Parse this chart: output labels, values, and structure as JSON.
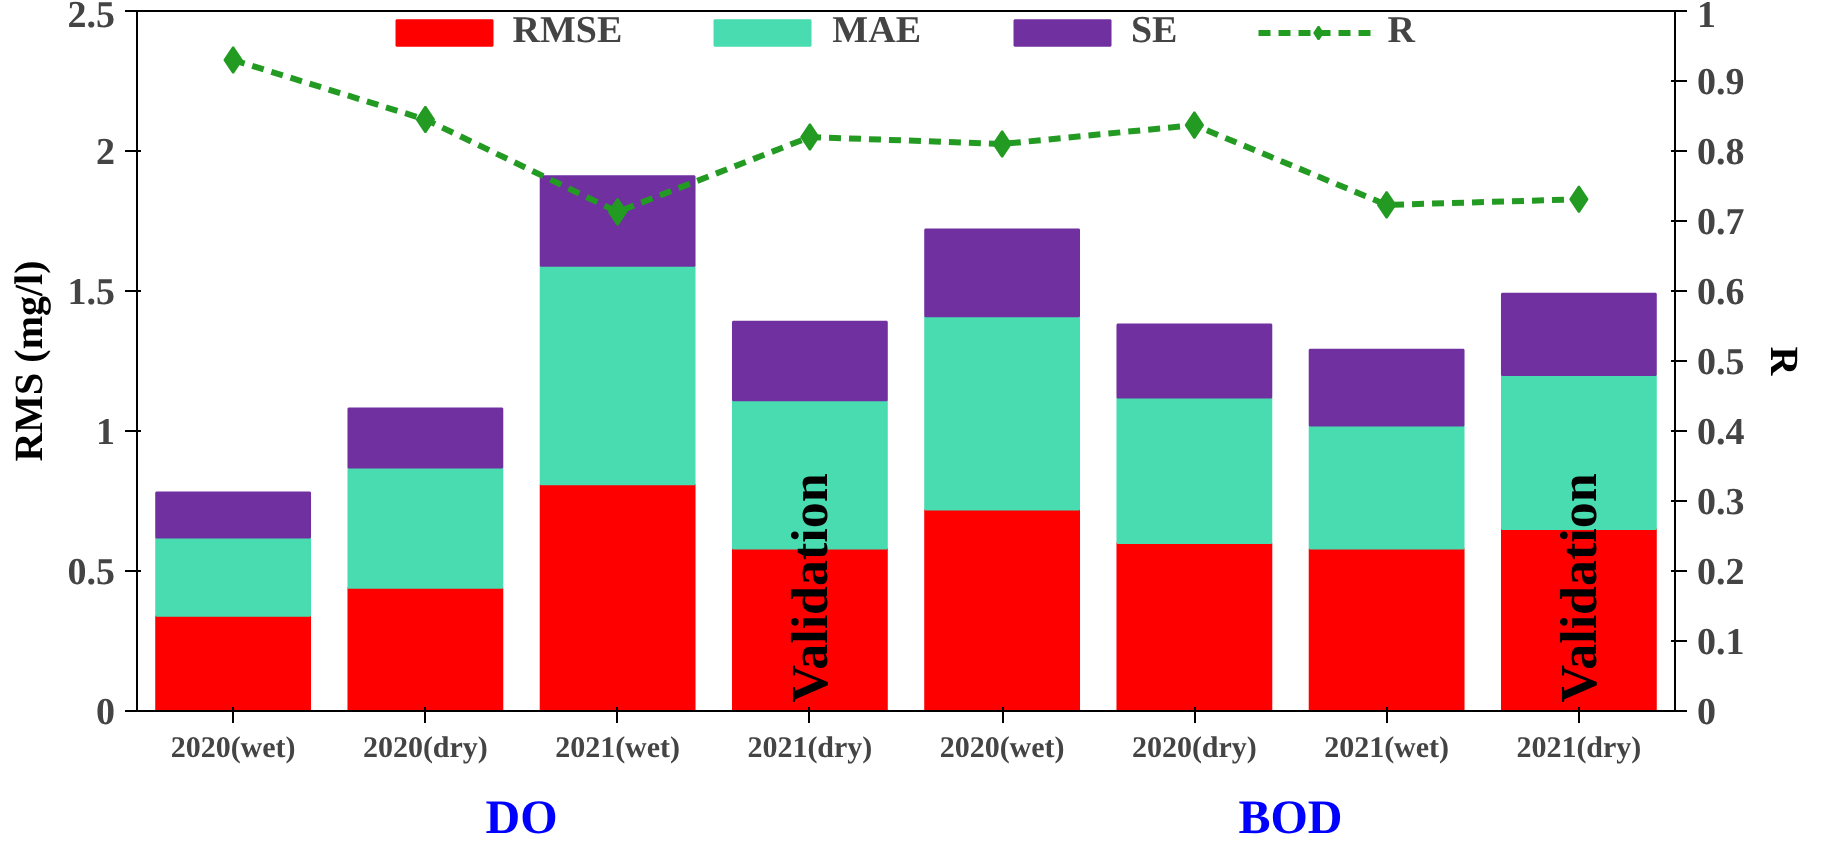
{
  "chart_data": {
    "type": "bar",
    "stacked": true,
    "categories": [
      "2020(wet)",
      "2020(dry)",
      "2021(wet)",
      "2021(dry)",
      "2020(wet)",
      "2020(dry)",
      "2021(wet)",
      "2021(dry)"
    ],
    "series": [
      {
        "name": "RMSE",
        "color": "#ff0000",
        "values": [
          0.34,
          0.44,
          0.81,
          0.58,
          0.72,
          0.6,
          0.58,
          0.65
        ]
      },
      {
        "name": "MAE",
        "color": "#48dcb0",
        "values": [
          0.28,
          0.43,
          0.78,
          0.53,
          0.69,
          0.52,
          0.44,
          0.55
        ]
      },
      {
        "name": "SE",
        "color": "#7030a0",
        "values": [
          0.16,
          0.21,
          0.32,
          0.28,
          0.31,
          0.26,
          0.27,
          0.29
        ]
      },
      {
        "name": "R",
        "type": "line",
        "axis": "y2",
        "color": "#239b23",
        "marker": "diamond",
        "line_style": "dashed",
        "values": [
          0.93,
          0.845,
          0.713,
          0.82,
          0.81,
          0.837,
          0.723,
          0.731
        ]
      }
    ],
    "ylabel": "RMS (mg/l)",
    "y2label": "R",
    "ylim": [
      0,
      2.5
    ],
    "yticks": [
      0,
      0.5,
      1,
      1.5,
      2,
      2.5
    ],
    "y2lim": [
      0,
      1
    ],
    "y2ticks": [
      0,
      0.1,
      0.2,
      0.3,
      0.4,
      0.5,
      0.6,
      0.7,
      0.8,
      0.9,
      1
    ],
    "annotations": [
      "Validation",
      "Validation",
      "DO",
      "BOD"
    ],
    "legend": "top",
    "grid": false
  }
}
